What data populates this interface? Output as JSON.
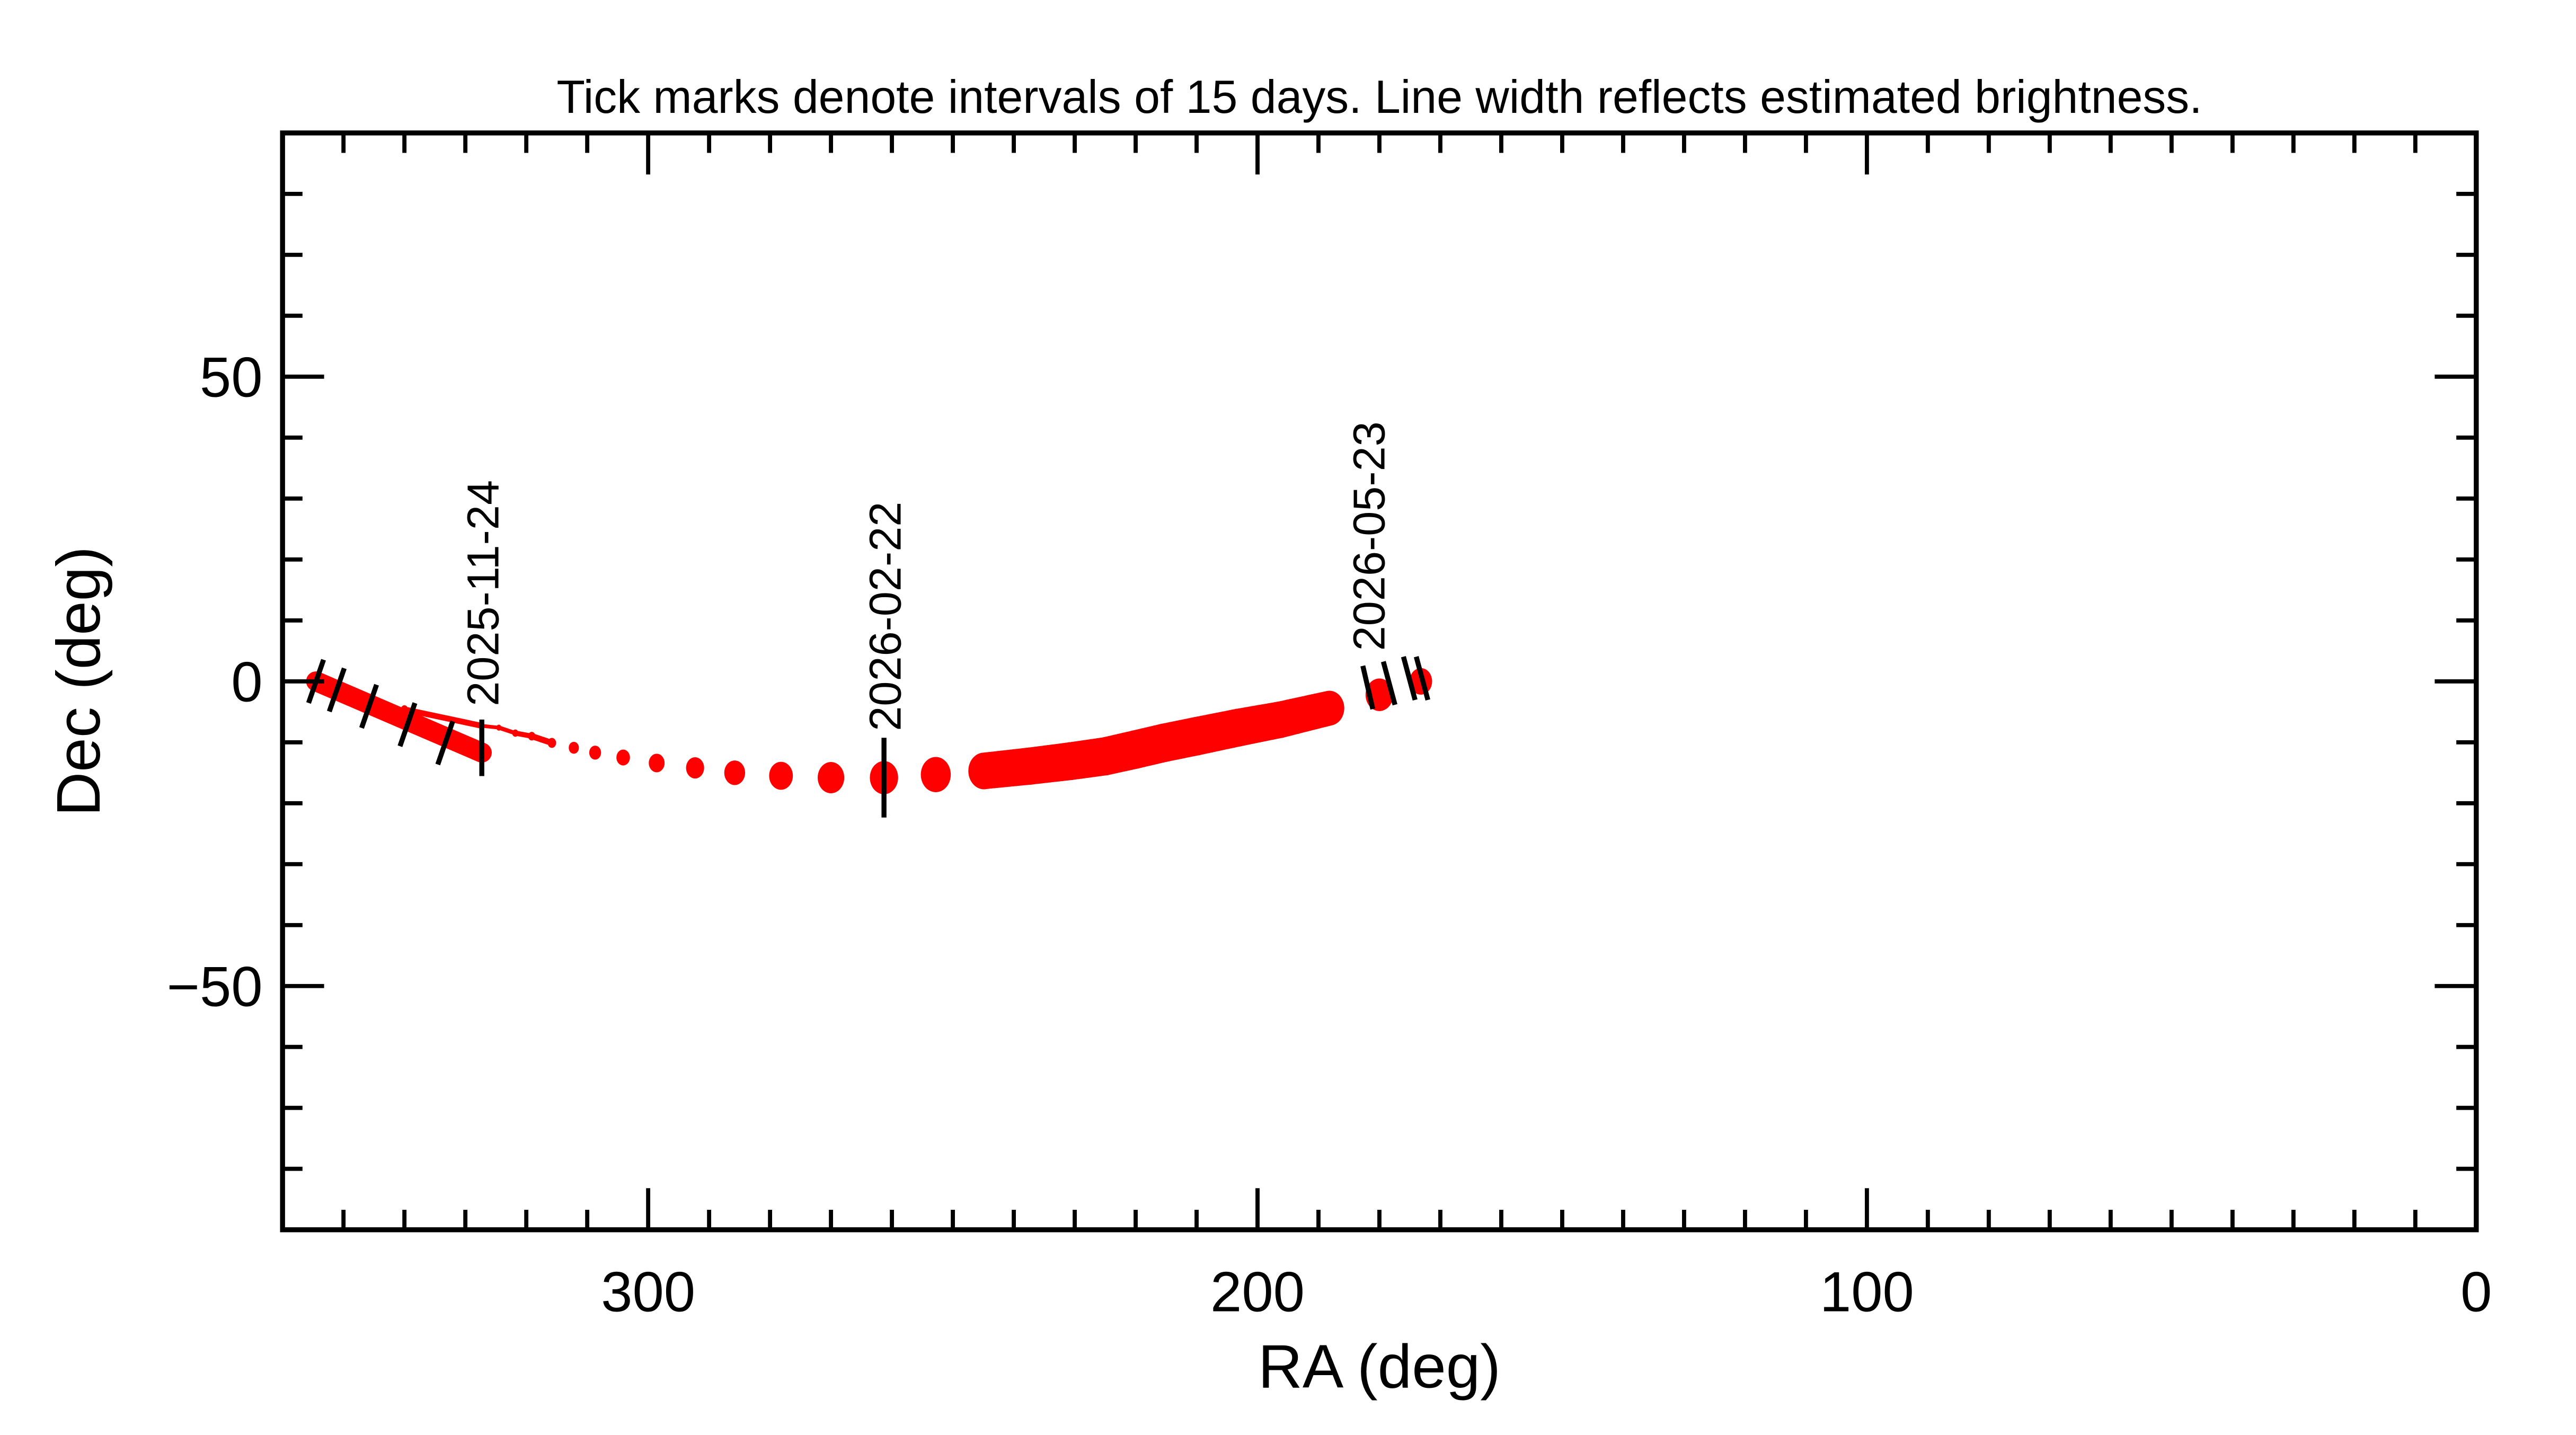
{
  "chart_data": {
    "type": "line",
    "title": "Tick marks denote intervals of 15 days.  Line width reflects estimated brightness.",
    "xlabel": "RA (deg)",
    "ylabel": "Dec (deg)",
    "xlim": [
      360,
      0
    ],
    "ylim": [
      -90,
      90
    ],
    "x_major_ticks": [
      300,
      200,
      100,
      0
    ],
    "x_minor_step": 10,
    "y_major_ticks": [
      -50,
      0,
      50
    ],
    "y_minor_step": 10,
    "x_tick_labels": [
      "300",
      "200",
      "100",
      "0"
    ],
    "y_tick_labels": [
      "−50",
      "0",
      "50"
    ],
    "colors": {
      "track": "#ff0000",
      "ticks": "#000000"
    },
    "thick_branch": {
      "points": [
        [
          354.5,
          0.0
        ],
        [
          327.3,
          -11.7
        ]
      ],
      "brightness_width": 6
    },
    "track": [
      {
        "ra": 354.5,
        "dec": 0.0,
        "w": 4
      },
      {
        "ra": 340.0,
        "dec": -4.6,
        "w": 2.5
      },
      {
        "ra": 327.3,
        "dec": -7.3,
        "w": 1.6
      },
      {
        "ra": 324.5,
        "dec": -7.6,
        "w": 1.8
      },
      {
        "ra": 321.8,
        "dec": -8.5,
        "w": 2.2
      },
      {
        "ra": 319.1,
        "dec": -9.0,
        "w": 2.6
      },
      {
        "ra": 315.8,
        "dec": -10.1,
        "w": 3.0
      },
      {
        "ra": 312.2,
        "dec": -10.9,
        "w": 3.6
      },
      {
        "ra": 308.7,
        "dec": -11.7,
        "w": 4.2
      },
      {
        "ra": 304.1,
        "dec": -12.5,
        "w": 4.8
      },
      {
        "ra": 298.6,
        "dec": -13.4,
        "w": 5.6
      },
      {
        "ra": 292.3,
        "dec": -14.2,
        "w": 6.4
      },
      {
        "ra": 285.8,
        "dec": -15.0,
        "w": 7.4
      },
      {
        "ra": 278.2,
        "dec": -15.5,
        "w": 8.4
      },
      {
        "ra": 270.0,
        "dec": -15.8,
        "w": 9.4
      },
      {
        "ra": 261.3,
        "dec": -15.8,
        "w": 10.0
      },
      {
        "ra": 252.8,
        "dec": -15.3,
        "w": 10.6
      },
      {
        "ra": 244.9,
        "dec": -14.7,
        "w": 11.0
      },
      {
        "ra": 237.3,
        "dec": -13.9,
        "w": 11.2
      },
      {
        "ra": 230.7,
        "dec": -13.1,
        "w": 11.4
      },
      {
        "ra": 225.0,
        "dec": -12.3,
        "w": 11.5
      },
      {
        "ra": 220.1,
        "dec": -11.2,
        "w": 11.6
      },
      {
        "ra": 215.4,
        "dec": -10.1,
        "w": 11.6
      },
      {
        "ra": 210.0,
        "dec": -9.0,
        "w": 11.6
      },
      {
        "ra": 203.2,
        "dec": -7.6,
        "w": 11.4
      },
      {
        "ra": 196.3,
        "dec": -6.3,
        "w": 11.0
      },
      {
        "ra": 188.2,
        "dec": -4.4,
        "w": 10.5
      },
      {
        "ra": 180.0,
        "dec": -2.2,
        "w": 9.8
      },
      {
        "ra": 173.2,
        "dec": 0.0,
        "w": 8.0
      }
    ],
    "interval_ticks": [
      {
        "ra": 354.5,
        "dec": 0.0,
        "label": ""
      },
      {
        "ra": 351.1,
        "dec": -1.4,
        "label": ""
      },
      {
        "ra": 345.8,
        "dec": -4.1,
        "label": ""
      },
      {
        "ra": 339.5,
        "dec": -7.1,
        "label": ""
      },
      {
        "ra": 333.3,
        "dec": -10.1,
        "label": ""
      },
      {
        "ra": 327.3,
        "dec": -10.9,
        "label": "2025-11-24"
      },
      {
        "ra": 261.3,
        "dec": -15.8,
        "label": "2026-02-22"
      },
      {
        "ra": 181.9,
        "dec": -1.0,
        "label": "2026-05-23"
      },
      {
        "ra": 178.4,
        "dec": -0.3,
        "label": ""
      },
      {
        "ra": 175.1,
        "dec": 0.5,
        "label": ""
      },
      {
        "ra": 173.0,
        "dec": 0.5,
        "label": ""
      }
    ]
  }
}
